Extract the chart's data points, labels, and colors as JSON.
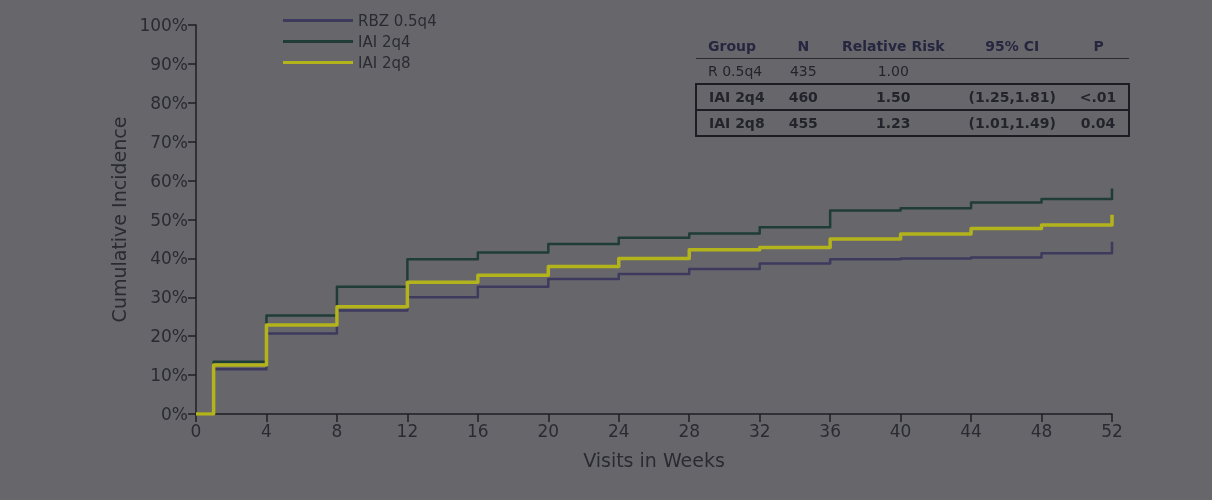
{
  "chart_data": {
    "type": "step",
    "xlabel": "Visits in Weeks",
    "ylabel": "Cumulative Incidence",
    "xlim": [
      0,
      52
    ],
    "xticks": [
      0,
      4,
      8,
      12,
      16,
      20,
      24,
      28,
      32,
      36,
      40,
      44,
      48,
      52
    ],
    "ylim": [
      0,
      100
    ],
    "yticks": [
      {
        "value": 0,
        "label": "0%"
      },
      {
        "value": 10,
        "label": "10%"
      },
      {
        "value": 20,
        "label": "20%"
      },
      {
        "value": 30,
        "label": "30%"
      },
      {
        "value": 40,
        "label": "40%"
      },
      {
        "value": 50,
        "label": "50%"
      },
      {
        "value": 60,
        "label": "60%"
      },
      {
        "value": 70,
        "label": "70%"
      },
      {
        "value": 80,
        "label": "80%"
      },
      {
        "value": 90,
        "label": "90%"
      },
      {
        "value": 100,
        "label": "100%"
      }
    ],
    "grid": false,
    "legend": "top left",
    "marker": "none",
    "line_style": "solid",
    "series": [
      {
        "name": "RBZ 0.5q4",
        "color": "#3d3a5e",
        "x": [
          0,
          1,
          4,
          8,
          12,
          16,
          20,
          24,
          28,
          32,
          36,
          40,
          44,
          48,
          52,
          52
        ],
        "values": [
          0,
          11.5,
          20.7,
          26.6,
          30.0,
          32.7,
          34.7,
          36.0,
          37.3,
          38.7,
          39.8,
          40.0,
          40.2,
          41.3,
          41.3,
          44.3
        ]
      },
      {
        "name": "IAI 2q4",
        "color": "#1f3d36",
        "x": [
          0,
          1,
          4,
          8,
          12,
          16,
          20,
          24,
          28,
          32,
          36,
          40,
          44,
          48,
          52,
          52
        ],
        "values": [
          0,
          13.4,
          25.3,
          32.7,
          39.8,
          41.5,
          43.7,
          45.3,
          46.4,
          48.0,
          52.3,
          52.9,
          54.4,
          55.3,
          55.3,
          58.0
        ]
      },
      {
        "name": "IAI 2q8",
        "color": "#b3b31c",
        "x": [
          0,
          1,
          4,
          8,
          12,
          16,
          20,
          24,
          28,
          32,
          36,
          40,
          44,
          48,
          52,
          52
        ],
        "values": [
          0,
          12.6,
          22.9,
          27.6,
          33.9,
          35.7,
          37.9,
          40.0,
          42.2,
          42.8,
          45.0,
          46.3,
          47.7,
          48.6,
          48.6,
          51.2
        ]
      }
    ],
    "annotations": [
      "Group\tN\tRelative Risk\t95% CI\tP",
      "R 0.5q4\t435\t1.00\t\t",
      "IAI 2q4\t460\t1.50\t(1.25,1.81)\t<.01",
      "IAI 2q8\t455\t1.23\t(1.01,1.49)\t0.04"
    ]
  }
}
